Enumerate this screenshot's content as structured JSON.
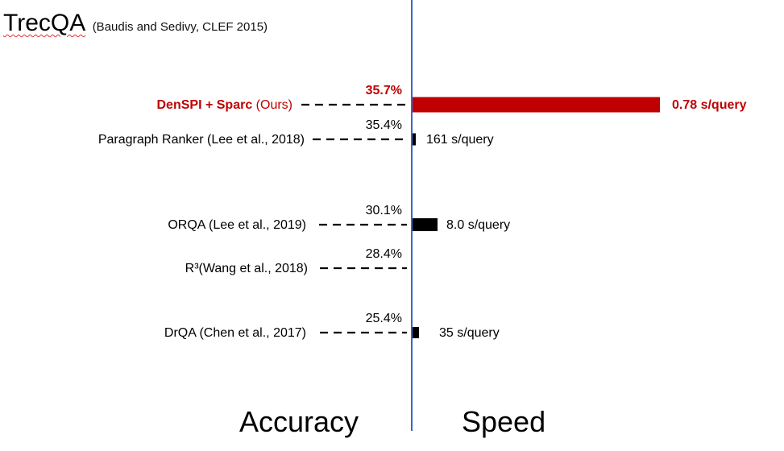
{
  "header": {
    "title": "TrecQA",
    "subtitle": "(Baudis and Sedivy, CLEF 2015)"
  },
  "footer": {
    "left_label": "Accuracy",
    "right_label": "Speed"
  },
  "colors": {
    "highlight": "#c00000",
    "default": "#000000",
    "axis": "#3a67c4"
  },
  "chart_data": {
    "type": "bar",
    "categories": [
      "DenSPI + Sparc",
      "Paragraph Ranker (Lee et al., 2018)",
      "ORQA (Lee et al., 2019)",
      "R³(Wang et al., 2018)",
      "DrQA (Chen et al., 2017)"
    ],
    "accuracy_labels": [
      "35.7%",
      "35.4%",
      "30.1%",
      "28.4%",
      "25.4%"
    ],
    "accuracy": [
      35.7,
      35.4,
      30.1,
      28.4,
      25.4
    ],
    "speed_labels": [
      "0.78 s/query",
      "161 s/query",
      "8.0 s/query",
      "",
      "35 s/query"
    ],
    "speed_bar_value": [
      1.0,
      0.0,
      0.1,
      null,
      0.02
    ],
    "highlight_suffix": "(Ours)",
    "highlight_index": 0,
    "left_panel": "Accuracy",
    "right_panel": "Speed"
  }
}
